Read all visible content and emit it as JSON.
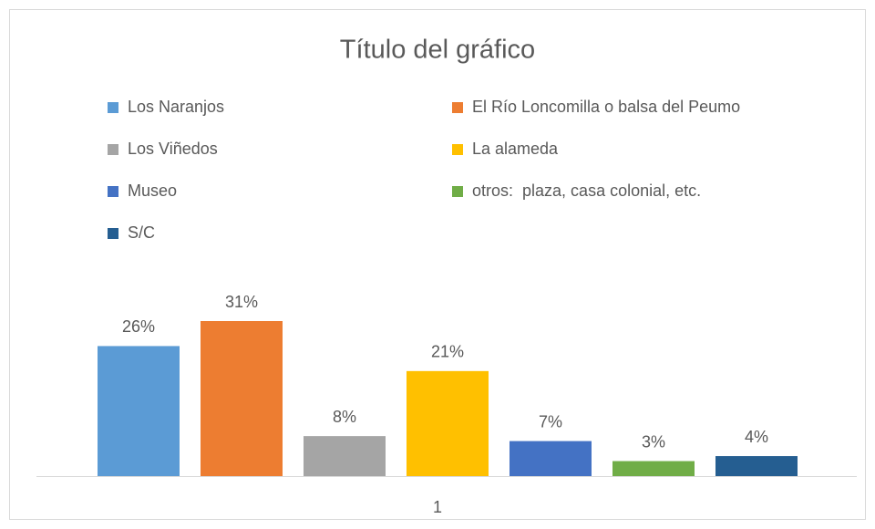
{
  "chart_data": {
    "type": "bar",
    "title": "Título del gráfico",
    "categories": [
      "1"
    ],
    "series": [
      {
        "name": "Los Naranjos",
        "color": "#5b9bd5",
        "values": [
          26
        ],
        "value_labels": [
          "26%"
        ]
      },
      {
        "name": "El Río Loncomilla o balsa del Peumo",
        "color": "#ed7d31",
        "values": [
          31
        ],
        "value_labels": [
          "31%"
        ]
      },
      {
        "name": "Los Viñedos",
        "color": "#a5a5a5",
        "values": [
          8
        ],
        "value_labels": [
          "8%"
        ]
      },
      {
        "name": "La alameda",
        "color": "#ffc000",
        "values": [
          21
        ],
        "value_labels": [
          "21%"
        ]
      },
      {
        "name": "Museo",
        "color": "#4472c4",
        "values": [
          7
        ],
        "value_labels": [
          "7%"
        ]
      },
      {
        "name": "otros:  plaza, casa colonial, etc.",
        "color": "#70ad47",
        "values": [
          3
        ],
        "value_labels": [
          "3%"
        ]
      },
      {
        "name": "S/C",
        "color": "#255e91",
        "values": [
          4
        ],
        "value_labels": [
          "4%"
        ]
      }
    ],
    "legend": "top"
  }
}
